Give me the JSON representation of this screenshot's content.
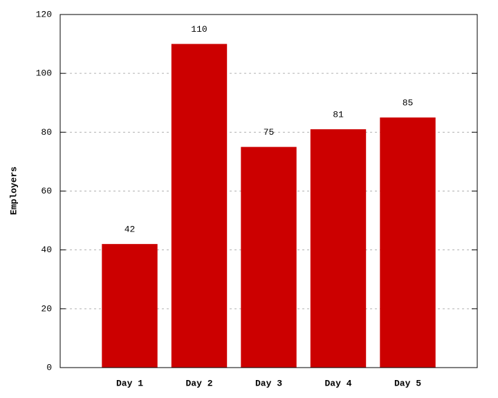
{
  "chart_data": {
    "type": "bar",
    "y_label": "Employers",
    "categories": [
      "Day 1",
      "Day 2",
      "Day 3",
      "Day 4",
      "Day 5"
    ],
    "values": [
      42,
      110,
      75,
      81,
      85
    ],
    "color": "#cc0000",
    "ylim": [
      0,
      120
    ],
    "yticks": [
      0,
      20,
      40,
      60,
      80,
      100,
      120
    ],
    "grid": true
  }
}
